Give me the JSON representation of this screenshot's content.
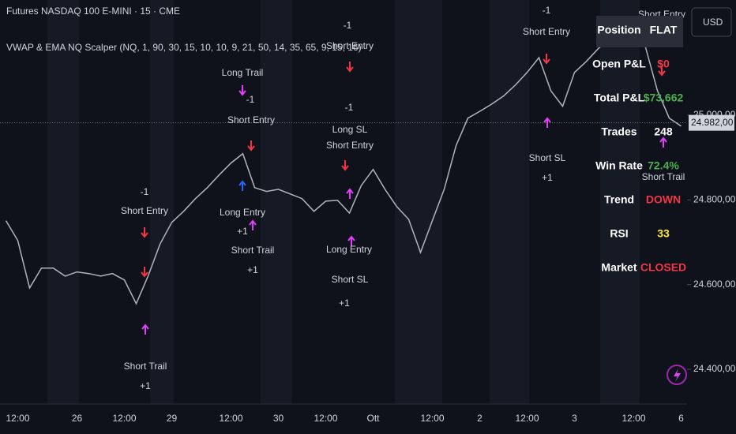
{
  "chart_data": {
    "type": "line",
    "title": "Futures NASDAQ 100 E-MINI · 15 · CME",
    "subtitle": "VWAP & EMA NQ Scalper (NQ, 1, 90, 30, 15, 10, 10, 9, 21, 50, 14, 35, 65, 9, 15, 16)",
    "currency_button": "USD",
    "categories": [
      null,
      "12:00",
      null,
      null,
      null,
      null,
      "26",
      null,
      null,
      null,
      "12:00",
      null,
      null,
      null,
      "29",
      null,
      null,
      null,
      null,
      "12:00",
      null,
      null,
      null,
      "30",
      null,
      null,
      null,
      "12:00",
      null,
      null,
      null,
      "Ott",
      null,
      null,
      null,
      null,
      "12:00",
      null,
      null,
      null,
      "2",
      null,
      null,
      null,
      "12:00",
      null,
      null,
      null,
      "3",
      null,
      null,
      null,
      null,
      "12:00",
      null,
      null,
      null,
      "6"
    ],
    "series": [
      {
        "name": "NQ",
        "color": "#b2b5be",
        "values": [
          24751,
          24704,
          24592,
          24639,
          24639,
          24620,
          24630,
          24626,
          24620,
          24626,
          24611,
          24555,
          24620,
          24695,
          24747,
          24773,
          24803,
          24829,
          24859,
          24887,
          24909,
          24829,
          24820,
          24825,
          24814,
          24803,
          24773,
          24797,
          24799,
          24769,
          24834,
          24872,
          24825,
          24784,
          24754,
          24676,
          24751,
          24825,
          24928,
          24993,
          25009,
          25026,
          25045,
          25071,
          25101,
          25136,
          25058,
          25021,
          25101,
          25127,
          25157,
          25179,
          25192,
          25198,
          25160,
          25058,
          24993,
          24974
        ]
      }
    ],
    "ylim": [
      24318,
      25272
    ],
    "yticks": [
      {
        "value": 24400,
        "label": "24.400,00"
      },
      {
        "value": 24600,
        "label": "24.600,00"
      },
      {
        "value": 24800,
        "label": "24.800,00"
      },
      {
        "value": 25000,
        "label": "25.000,00"
      }
    ],
    "last_price": {
      "value": 24982,
      "label": "24.982,00"
    },
    "annotations": [
      "-1",
      "Short Entry",
      "Short Entry",
      "-1",
      "Short Entry",
      "Long Trail",
      "-1",
      "Short Entry",
      "-1",
      "Long SL",
      "Short Entry",
      "-1",
      "Short Entry",
      "Long Entry",
      "+1",
      "Short Trail",
      "+1",
      "Short SL",
      "+1",
      "Short Trail",
      "Long Entry",
      "Short SL",
      "+1",
      "Short Trail",
      "+1"
    ],
    "stats_table": [
      {
        "label": "Position",
        "value": "FLAT",
        "color": "#ffffff"
      },
      {
        "label": "Open P&L",
        "value": "$0",
        "color": "#f23645"
      },
      {
        "label": "Total P&L",
        "value": "$73,662",
        "color": "#4caf50"
      },
      {
        "label": "Trades",
        "value": "248",
        "color": "#ffffff"
      },
      {
        "label": "Win Rate",
        "value": "72.4%",
        "color": "#4caf50"
      },
      {
        "label": "Trend",
        "value": "DOWN",
        "color": "#f23645"
      },
      {
        "label": "RSI",
        "value": "33",
        "color": "#ffeb3b"
      },
      {
        "label": "Market",
        "value": "CLOSED",
        "color": "#f23645"
      }
    ]
  }
}
